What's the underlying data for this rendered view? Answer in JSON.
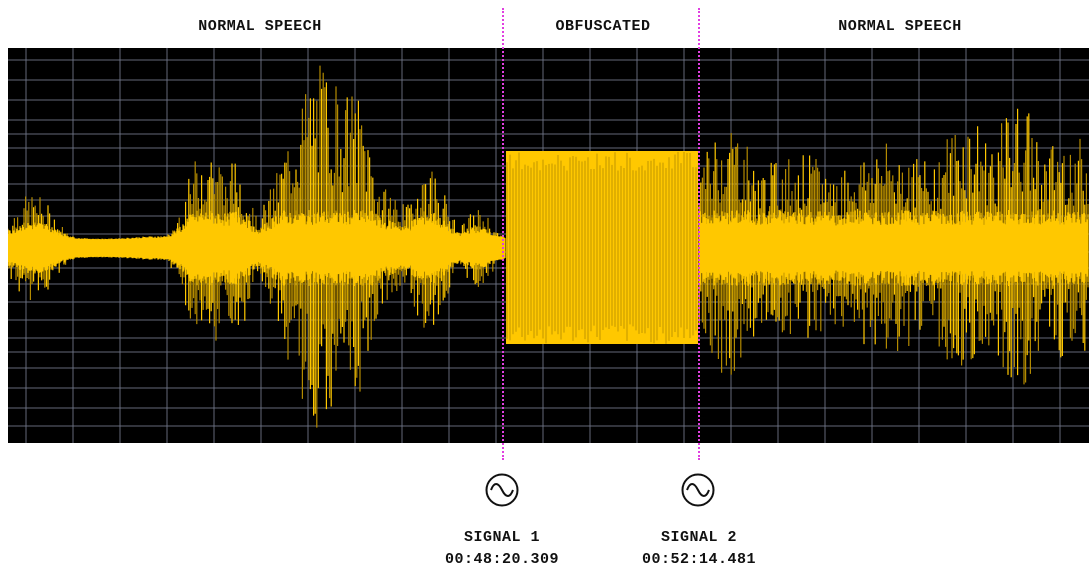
{
  "segments": {
    "left": "NORMAL SPEECH",
    "middle": "OBFUSCATED",
    "right": "NORMAL SPEECH"
  },
  "signals": [
    {
      "name": "SIGNAL 1",
      "time": "00:48:20.309",
      "icon": "sine-wave-icon"
    },
    {
      "name": "SIGNAL 2",
      "time": "00:52:14.481",
      "icon": "sine-wave-icon"
    }
  ],
  "colors": {
    "background": "#000000",
    "grid": "#6e7486",
    "waveform": "#ffc800",
    "waveform_dim": "#b38a00",
    "marker": "#e040e0"
  }
}
